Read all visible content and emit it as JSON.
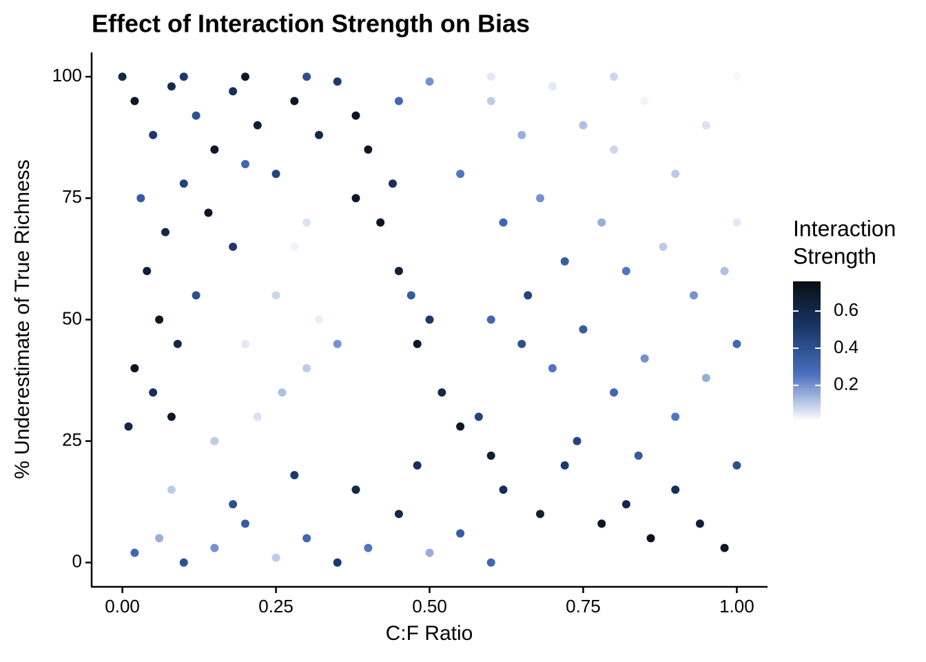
{
  "chart_data": {
    "type": "scatter",
    "title": "Effect of Interaction Strength on Bias",
    "x_label": "C:F Ratio",
    "y_label": "% Underestimate of True Richness",
    "legend_title": [
      "Interaction",
      "Strength"
    ],
    "xlim": [
      -0.05,
      1.05
    ],
    "ylim": [
      -5,
      105
    ],
    "xticks": [
      {
        "value": 0,
        "label": "0.00"
      },
      {
        "value": 0.25,
        "label": "0.25"
      },
      {
        "value": 0.5,
        "label": "0.50"
      },
      {
        "value": 0.75,
        "label": "0.75"
      },
      {
        "value": 1,
        "label": "1.00"
      }
    ],
    "yticks": [
      0,
      25,
      50,
      75,
      100
    ],
    "colorlim": [
      0.01,
      0.76
    ],
    "colorticks": [
      0.2,
      0.4,
      0.6
    ],
    "palette": [
      "#ffffff",
      "#4a6fbf",
      "#1a3768",
      "#0a0d13"
    ],
    "series": [
      {
        "x": [
          0.02,
          0.05,
          0.08,
          0.12,
          0.15,
          0.18,
          0.22,
          0.25,
          0.28,
          0.32,
          0.35,
          0.38,
          0.03,
          0.07,
          0.1,
          0.14,
          0.18,
          0.2,
          0.04,
          0.06,
          0.09,
          0.12,
          0.02,
          0.05,
          0.08,
          0.01,
          0.2,
          0.25,
          0.28,
          0.3,
          0.22,
          0.32,
          0.26,
          0.15,
          0.3,
          0.35,
          0.4,
          0.42,
          0.45,
          0.48,
          0.52,
          0.55,
          0.6,
          0.44,
          0.5,
          0.58,
          0.38,
          0.47,
          0.6,
          0.65,
          0.7,
          0.75,
          0.8,
          0.85,
          0.9,
          0.95,
          1.0,
          0.55,
          0.62,
          0.68,
          0.72,
          0.78,
          0.82,
          0.88,
          0.93,
          0.98,
          0.5,
          0.45,
          0.6,
          0.65,
          0.7,
          0.75,
          0.8,
          0.85,
          0.9,
          0.95,
          1.0,
          0.66,
          0.62,
          0.68,
          0.72,
          0.78,
          0.82,
          0.86,
          0.9,
          0.94,
          0.98,
          1.0,
          0.74,
          0.84,
          0.02,
          0.06,
          0.1,
          0.15,
          0.2,
          0.25,
          0.3,
          0.35,
          0.4,
          0.45,
          0.5,
          0.55,
          0.6,
          0.08,
          0.18,
          0.28,
          0.38,
          0.48,
          0.0,
          0.1,
          0.2,
          0.3,
          0.6,
          0.8,
          1.0
        ],
        "y": [
          95,
          88,
          98,
          92,
          85,
          97,
          90,
          80,
          95,
          88,
          99,
          92,
          75,
          68,
          78,
          72,
          65,
          82,
          60,
          50,
          45,
          55,
          40,
          35,
          30,
          28,
          45,
          55,
          65,
          40,
          30,
          50,
          35,
          25,
          70,
          45,
          85,
          70,
          60,
          45,
          35,
          28,
          22,
          78,
          50,
          30,
          75,
          55,
          95,
          88,
          98,
          90,
          85,
          95,
          80,
          90,
          70,
          80,
          70,
          75,
          62,
          70,
          60,
          65,
          55,
          60,
          99,
          95,
          50,
          45,
          40,
          48,
          35,
          42,
          30,
          38,
          45,
          55,
          15,
          10,
          20,
          8,
          12,
          5,
          15,
          8,
          3,
          20,
          25,
          22,
          2,
          5,
          0,
          3,
          8,
          1,
          5,
          0,
          3,
          10,
          2,
          6,
          0,
          15,
          12,
          18,
          15,
          20,
          100,
          100,
          100,
          100,
          100,
          100,
          100
        ],
        "values": [
          0.7,
          0.5,
          0.6,
          0.4,
          0.7,
          0.55,
          0.65,
          0.45,
          0.7,
          0.6,
          0.5,
          0.72,
          0.35,
          0.6,
          0.45,
          0.7,
          0.5,
          0.3,
          0.65,
          0.7,
          0.6,
          0.4,
          0.72,
          0.55,
          0.7,
          0.6,
          0.05,
          0.08,
          0.03,
          0.1,
          0.06,
          0.04,
          0.12,
          0.1,
          0.06,
          0.2,
          0.7,
          0.72,
          0.65,
          0.7,
          0.6,
          0.7,
          0.65,
          0.55,
          0.5,
          0.45,
          0.7,
          0.35,
          0.1,
          0.15,
          0.05,
          0.12,
          0.08,
          0.03,
          0.1,
          0.06,
          0.05,
          0.25,
          0.3,
          0.2,
          0.35,
          0.15,
          0.25,
          0.1,
          0.2,
          0.12,
          0.2,
          0.3,
          0.3,
          0.4,
          0.25,
          0.35,
          0.3,
          0.2,
          0.25,
          0.15,
          0.3,
          0.45,
          0.55,
          0.65,
          0.5,
          0.7,
          0.6,
          0.72,
          0.55,
          0.65,
          0.7,
          0.4,
          0.45,
          0.35,
          0.3,
          0.15,
          0.4,
          0.2,
          0.35,
          0.1,
          0.3,
          0.5,
          0.25,
          0.6,
          0.15,
          0.35,
          0.3,
          0.1,
          0.4,
          0.5,
          0.6,
          0.55,
          0.6,
          0.5,
          0.7,
          0.4,
          0.05,
          0.08,
          0.02
        ]
      }
    ]
  }
}
